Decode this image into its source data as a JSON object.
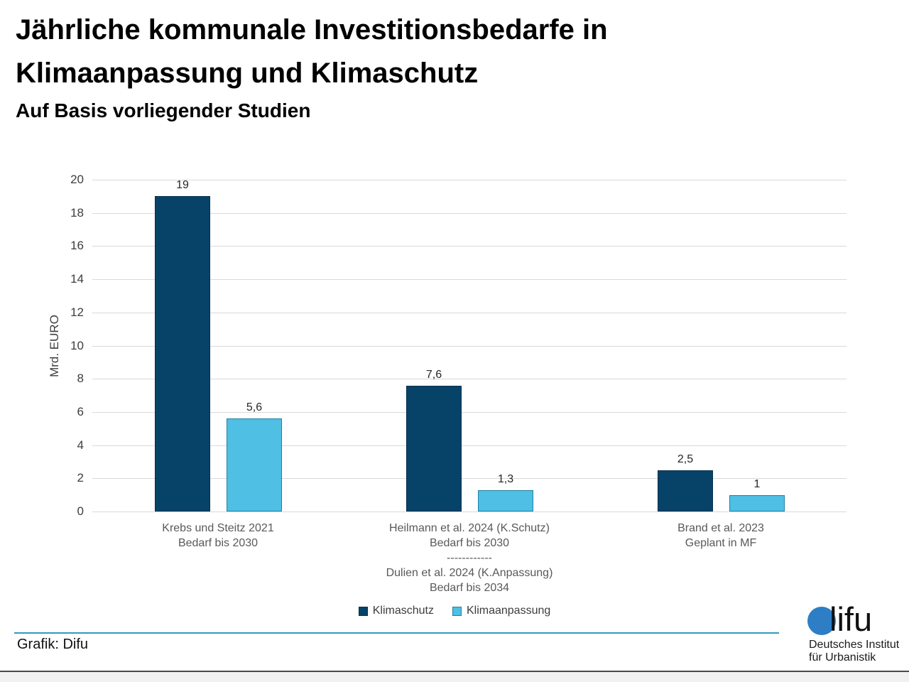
{
  "header": {
    "title_line1": "Jährliche kommunale Investitionsbedarfe in",
    "title_line2": "Klimaanpassung und Klimaschutz",
    "subtitle": "Auf Basis vorliegender Studien"
  },
  "chart_data": {
    "type": "bar",
    "title": "Jährliche kommunale Investitionsbedarfe in Klimaanpassung und Klimaschutz",
    "subtitle": "Auf Basis vorliegender Studien",
    "xlabel": "",
    "ylabel": "Mrd. EURO",
    "ylim": [
      0,
      20
    ],
    "yticks": [
      0,
      2,
      4,
      6,
      8,
      10,
      12,
      14,
      16,
      18,
      20
    ],
    "grid": true,
    "legend_position": "bottom",
    "categories": [
      [
        "Krebs und Steitz 2021",
        "Bedarf bis 2030"
      ],
      [
        "Heilmann et al. 2024 (K.Schutz)",
        "Bedarf bis 2030",
        "------------",
        "Dulien et al. 2024 (K.Anpassung)",
        "Bedarf bis 2034"
      ],
      [
        "Brand et al. 2023",
        "Geplant in MF"
      ]
    ],
    "series": [
      {
        "name": "Klimaschutz",
        "color": "#074369",
        "border_color": "#06304e",
        "values": [
          19,
          7.6,
          2.5
        ],
        "value_labels": [
          "19",
          "7,6",
          "2,5"
        ]
      },
      {
        "name": "Klimaanpassung",
        "color": "#4fbfe3",
        "border_color": "#2380a8",
        "values": [
          5.6,
          1.3,
          1
        ],
        "value_labels": [
          "5,6",
          "1,3",
          "1"
        ]
      }
    ]
  },
  "footer": {
    "credit": "Grafik: Difu",
    "logo": {
      "wordmark_rest": "lifu",
      "dot_color": "#2e7ec6",
      "org_line1": "Deutsches Institut",
      "org_line2": "für Urbanistik"
    }
  },
  "colors": {
    "gridline": "#d9d9d9",
    "teal_rule": "#2e9bbd",
    "bottom_rule": "#4a4a4a"
  }
}
